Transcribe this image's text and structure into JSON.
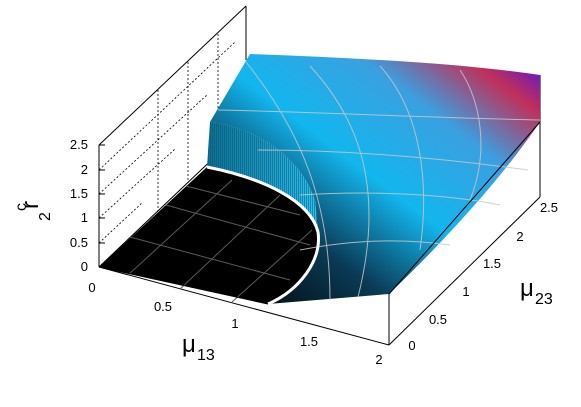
{
  "chart_data": {
    "type": "surface3d",
    "title": "",
    "axes": {
      "x": {
        "label": "μ",
        "subscript": "13",
        "range": [
          0,
          2
        ],
        "ticks": [
          "0",
          "0.5",
          "1",
          "1.5",
          "2"
        ]
      },
      "y": {
        "label": "μ",
        "subscript": "23",
        "range": [
          0,
          2.5
        ],
        "ticks": [
          "0",
          "0.5",
          "1",
          "1.5",
          "2",
          "2.5"
        ]
      },
      "z": {
        "label": "r",
        "superscript": "2",
        "subscript": "c",
        "range": [
          0,
          2.5
        ],
        "ticks": [
          "0",
          "0.5",
          "1",
          "1.5",
          "2",
          "2.5"
        ]
      }
    },
    "surface": {
      "description_free_region": "r_c^2 = 0 inside boundary (mu13^2 + mu23^2 <= 1 approx); surface rises outside",
      "z_at_corner_mu13_2_mu23_2_5": 2.5,
      "grid_on_surface": true,
      "colormap": [
        "#000000",
        "#00aeef",
        "#ff0040",
        "#0000ff"
      ]
    },
    "grid": true,
    "legend": "none"
  }
}
